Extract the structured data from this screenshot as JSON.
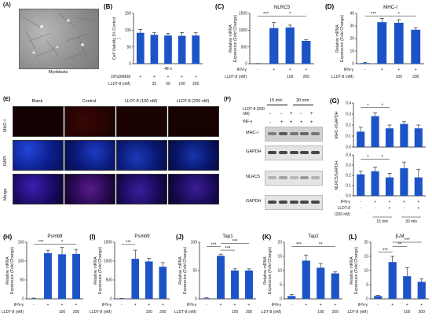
{
  "panels": {
    "A": {
      "label": "(A)",
      "caption": "Myoblasts"
    },
    "E": {
      "label": "(E)",
      "columns": [
        "Blank",
        "Control",
        "LLDT-8 (100 nM)",
        "LLDT-8 (200 nM)"
      ],
      "rows": [
        "MHC-I",
        "DAPI",
        "Merge"
      ],
      "scale": "100 μm"
    },
    "F": {
      "label": "(F)",
      "time_labels": [
        "15 min",
        "30 min"
      ],
      "row_llt": "LLDT-8 (200 nM)",
      "row_ifn": "INF-γ",
      "llt_signs": [
        "-",
        "-",
        "+",
        "-",
        "+"
      ],
      "ifn_signs": [
        "-",
        "+",
        "+",
        "+",
        "+"
      ],
      "blots": [
        "MHC-I",
        "GAPDH",
        "NLRC5",
        "GAPDH"
      ]
    }
  },
  "colors": {
    "bar": "#1c54c8",
    "axis": "#111111"
  },
  "chart_data": [
    {
      "id": "B",
      "label": "(B)",
      "type": "bar",
      "title": "",
      "ylabel": "Cell Viability (% Control)",
      "ylim": [
        0,
        150
      ],
      "yticks": [
        0,
        50,
        100,
        150
      ],
      "categories": [
        "10%DMEM",
        "25",
        "50",
        "100",
        "200"
      ],
      "values": [
        92,
        86,
        84,
        83,
        84
      ],
      "errors": [
        10,
        6,
        6,
        10,
        8
      ],
      "header": "48 h",
      "rows": [
        {
          "label": "10%DMEM",
          "values": [
            "+",
            "+",
            "+",
            "+",
            "+"
          ]
        },
        {
          "label": "LLDT-8 (nM)",
          "values": [
            "",
            "25",
            "50",
            "100",
            "200"
          ]
        }
      ],
      "sig": []
    },
    {
      "id": "C",
      "label": "(C)",
      "type": "bar",
      "title": "NLRC5",
      "ylabel": "Relative mRNA Expression (Fold Change)",
      "ylim": [
        0,
        1500
      ],
      "yticks": [
        0,
        500,
        1000,
        1500
      ],
      "categories": [
        "1",
        "2",
        "3",
        "4"
      ],
      "values": [
        2,
        1060,
        1080,
        680
      ],
      "errors": [
        2,
        170,
        70,
        30
      ],
      "rows": [
        {
          "label": "IFN-γ",
          "values": [
            "-",
            "+",
            "+",
            "+"
          ]
        },
        {
          "label": "LLDT-8 (nM)",
          "values": [
            "",
            "",
            "100",
            "200"
          ]
        }
      ],
      "sig": [
        {
          "a": 0,
          "b": 1,
          "y": 1420,
          "t": "***"
        },
        {
          "a": 1,
          "b": 3,
          "y": 1420,
          "t": "*"
        }
      ]
    },
    {
      "id": "D",
      "label": "(D)",
      "type": "bar",
      "title": "MHC-I",
      "ylabel": "Relative mRNA Expression (Fold Change)",
      "ylim": [
        0,
        40
      ],
      "yticks": [
        0,
        10,
        20,
        30,
        40
      ],
      "categories": [
        "1",
        "2",
        "3",
        "4"
      ],
      "values": [
        0.5,
        33,
        32.5,
        27
      ],
      "errors": [
        0.5,
        3,
        2.5,
        1.5
      ],
      "rows": [
        {
          "label": "IFN-γ",
          "values": [
            "-",
            "+",
            "+",
            "+"
          ]
        },
        {
          "label": "LLDT-8 (nM)",
          "values": [
            "",
            "",
            "100",
            "200"
          ]
        }
      ],
      "sig": [
        {
          "a": 0,
          "b": 1,
          "y": 38,
          "t": "***"
        },
        {
          "a": 1,
          "b": 3,
          "y": 38,
          "t": "*"
        }
      ]
    },
    {
      "id": "G1",
      "label": "(G)",
      "type": "bar",
      "title": "",
      "ylabel": "MHC-I/GAPDH",
      "ylim": [
        0,
        0.4
      ],
      "yticks": [
        0.0,
        0.1,
        0.2,
        0.3,
        0.4
      ],
      "categories": [
        "1",
        "2",
        "3",
        "4",
        "5"
      ],
      "values": [
        0.14,
        0.28,
        0.17,
        0.21,
        0.17
      ],
      "errors": [
        0.04,
        0.03,
        0.03,
        0.02,
        0.03
      ],
      "rows": [],
      "sig": [
        {
          "a": 0,
          "b": 1,
          "y": 0.36,
          "t": "*"
        },
        {
          "a": 1,
          "b": 2,
          "y": 0.36,
          "t": "*"
        }
      ]
    },
    {
      "id": "G2",
      "label": "",
      "type": "bar",
      "title": "",
      "ylabel": "NLRC5/GAPDH",
      "ylim": [
        0,
        0.4
      ],
      "yticks": [
        0.0,
        0.1,
        0.2,
        0.3,
        0.4
      ],
      "categories": [
        "1",
        "2",
        "3",
        "4",
        "5"
      ],
      "values": [
        0.21,
        0.24,
        0.18,
        0.27,
        0.18
      ],
      "errors": [
        0.03,
        0.04,
        0.04,
        0.06,
        0.08
      ],
      "rows": [
        {
          "label": "IFN-γ",
          "values": [
            "-",
            "+",
            "+",
            "+",
            "+"
          ]
        },
        {
          "label": "LLDT-8",
          "values": [
            "-",
            "-",
            "+",
            "-",
            "+"
          ]
        },
        {
          "label": "(200 nM)",
          "values": [
            "",
            "",
            "",
            "",
            ""
          ]
        }
      ],
      "groups": [
        {
          "from": 1,
          "to": 2,
          "t": "15 min"
        },
        {
          "from": 3,
          "to": 4,
          "t": "30 min"
        }
      ],
      "sig": [
        {
          "a": 0,
          "b": 1,
          "y": 0.36,
          "t": "*"
        },
        {
          "a": 1,
          "b": 2,
          "y": 0.36,
          "t": "*"
        }
      ]
    },
    {
      "id": "H",
      "label": "(H)",
      "type": "bar",
      "title": "Psmb8",
      "ylabel": "Relative mRNA Expression (Fold Change)",
      "ylim": [
        0,
        150
      ],
      "yticks": [
        0,
        50,
        100,
        150
      ],
      "categories": [
        "1",
        "2",
        "3",
        "4"
      ],
      "values": [
        1,
        121,
        118,
        119
      ],
      "errors": [
        1,
        8,
        18,
        12
      ],
      "rows": [
        {
          "label": "IFN-γ",
          "values": [
            "-",
            "+",
            "+",
            "+"
          ]
        },
        {
          "label": "LLDT-8 (nM)",
          "values": [
            "",
            "",
            "100",
            "200"
          ]
        }
      ],
      "sig": [
        {
          "a": 0,
          "b": 1,
          "y": 145,
          "t": "***"
        },
        {
          "a": 1,
          "b": 3,
          "y": 145,
          "t": "*"
        }
      ]
    },
    {
      "id": "I",
      "label": "(I)",
      "type": "bar",
      "title": "Psmb9",
      "ylabel": "Relative mRNA Expression (Fold Change)",
      "ylim": [
        0,
        1500
      ],
      "yticks": [
        0,
        500,
        1000,
        1500
      ],
      "categories": [
        "1",
        "2",
        "3",
        "4"
      ],
      "values": [
        5,
        1060,
        990,
        850
      ],
      "errors": [
        5,
        230,
        80,
        110
      ],
      "rows": [
        {
          "label": "IFN-γ",
          "values": [
            "-",
            "+",
            "+",
            "+"
          ]
        },
        {
          "label": "LLDT-8 (nM)",
          "values": [
            "",
            "",
            "100",
            "200"
          ]
        }
      ],
      "sig": [
        {
          "a": 0,
          "b": 1,
          "y": 1440,
          "t": "***"
        }
      ]
    },
    {
      "id": "J",
      "label": "(J)",
      "type": "bar",
      "title": "Tap1",
      "ylabel": "Relative mRNA Expression (Fold Change)",
      "ylim": [
        0,
        100
      ],
      "yticks": [
        0,
        50,
        100
      ],
      "categories": [
        "1",
        "2",
        "3",
        "4"
      ],
      "values": [
        1,
        76,
        50,
        50
      ],
      "errors": [
        1,
        3,
        3,
        3
      ],
      "rows": [
        {
          "label": "IFN-γ",
          "values": [
            "-",
            "+",
            "+",
            "+"
          ]
        },
        {
          "label": "LLDT-8 (nM)",
          "values": [
            "",
            "",
            "100",
            "200"
          ]
        }
      ],
      "sig": [
        {
          "a": 0,
          "b": 1,
          "y": 92,
          "t": "***"
        },
        {
          "a": 1,
          "b": 2,
          "y": 86,
          "t": "***"
        },
        {
          "a": 1,
          "b": 3,
          "y": 98,
          "t": "***"
        }
      ]
    },
    {
      "id": "K",
      "label": "(K)",
      "type": "bar",
      "title": "Tap2",
      "ylabel": "Relative mRNA Expression (Fold Change)",
      "ylim": [
        0,
        20
      ],
      "yticks": [
        0,
        5,
        10,
        15,
        20
      ],
      "categories": [
        "1",
        "2",
        "3",
        "4"
      ],
      "values": [
        1,
        13.5,
        11,
        9
      ],
      "errors": [
        0.5,
        2,
        1.5,
        0.5
      ],
      "rows": [
        {
          "label": "IFN-γ",
          "values": [
            "-",
            "+",
            "+",
            "+"
          ]
        },
        {
          "label": "LLDT-8 (nM)",
          "values": [
            "",
            "",
            "100",
            "200"
          ]
        }
      ],
      "sig": [
        {
          "a": 0,
          "b": 1,
          "y": 18.5,
          "t": "***"
        },
        {
          "a": 1,
          "b": 3,
          "y": 18.5,
          "t": "**"
        }
      ]
    },
    {
      "id": "L",
      "label": "(L)",
      "type": "bar",
      "title": "β₂M",
      "ylabel": "Relative mRNA Expression (Fold Change)",
      "ylim": [
        0,
        20
      ],
      "yticks": [
        0,
        5,
        10,
        15,
        20
      ],
      "categories": [
        "1",
        "2",
        "3",
        "4"
      ],
      "values": [
        1,
        13,
        8,
        6
      ],
      "errors": [
        0.3,
        2,
        3,
        1
      ],
      "rows": [
        {
          "label": "IFN-γ",
          "values": [
            "-",
            "+",
            "+",
            "+"
          ]
        },
        {
          "label": "LLDT-8 (nM)",
          "values": [
            "",
            "",
            "100",
            "200"
          ]
        }
      ],
      "sig": [
        {
          "a": 0,
          "b": 1,
          "y": 16.5,
          "t": "***"
        },
        {
          "a": 1,
          "b": 2,
          "y": 18.5,
          "t": "**"
        },
        {
          "a": 1,
          "b": 3,
          "y": 20,
          "t": "***"
        }
      ]
    }
  ]
}
